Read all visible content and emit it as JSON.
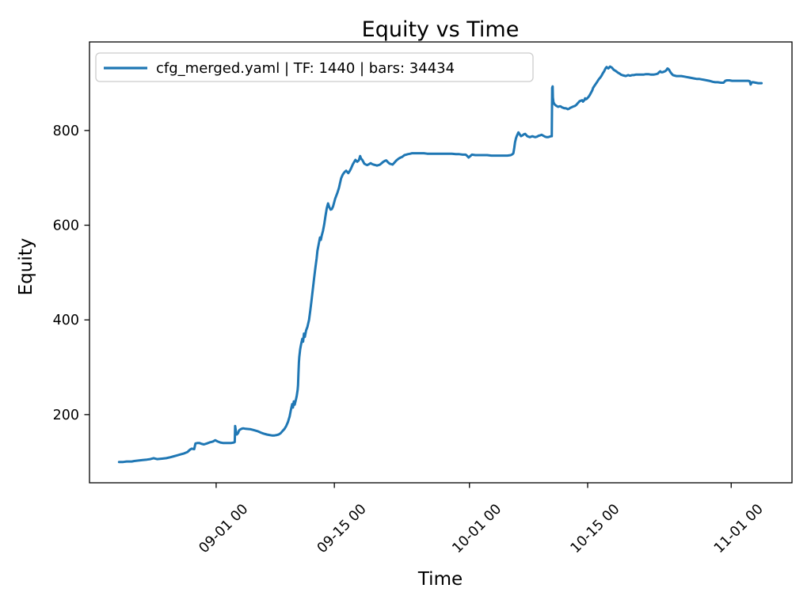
{
  "figure": {
    "title": "Equity vs Time",
    "xlabel": "Time",
    "ylabel": "Equity",
    "legend": {
      "label": "cfg_merged.yaml | TF: 1440 | bars: 34434",
      "line_color": "#1f77b4"
    },
    "colors": {
      "background": "#ffffff",
      "spine": "#000000",
      "legend_border": "#cccccc",
      "series": "#1f77b4"
    }
  },
  "chart_data": {
    "type": "line",
    "title": "Equity vs Time",
    "xlabel": "Time",
    "ylabel": "Equity",
    "legend": [
      "cfg_merged.yaml | TF: 1440 | bars: 34434"
    ],
    "legend_position": "upper left",
    "grid": false,
    "line_color": "#1f77b4",
    "x_unit": "days relative to 09-01 00:00",
    "xlim": [
      -15.0,
      68.2
    ],
    "ylim": [
      56,
      987
    ],
    "x_ticks": [
      {
        "pos": 0,
        "label": "09-01 00"
      },
      {
        "pos": 14,
        "label": "09-15 00"
      },
      {
        "pos": 30,
        "label": "10-01 00"
      },
      {
        "pos": 44,
        "label": "10-15 00"
      },
      {
        "pos": 61,
        "label": "11-01 00"
      }
    ],
    "y_ticks": [
      200,
      400,
      600,
      800
    ],
    "points": [
      [
        -11.5,
        100
      ],
      [
        -11.0,
        100
      ],
      [
        -10.6,
        101
      ],
      [
        -10.0,
        101
      ],
      [
        -9.7,
        102
      ],
      [
        -9.2,
        103
      ],
      [
        -8.7,
        104
      ],
      [
        -8.2,
        105
      ],
      [
        -7.8,
        106
      ],
      [
        -7.4,
        108
      ],
      [
        -7.0,
        106
      ],
      [
        -6.4,
        107
      ],
      [
        -5.9,
        108
      ],
      [
        -5.4,
        110
      ],
      [
        -5.0,
        112
      ],
      [
        -4.6,
        114
      ],
      [
        -4.2,
        116
      ],
      [
        -3.8,
        118
      ],
      [
        -3.4,
        121
      ],
      [
        -3.1,
        126
      ],
      [
        -2.9,
        128
      ],
      [
        -2.6,
        127
      ],
      [
        -2.45,
        139
      ],
      [
        -2.2,
        140
      ],
      [
        -2.0,
        140
      ],
      [
        -1.7,
        138
      ],
      [
        -1.45,
        137
      ],
      [
        -1.1,
        139
      ],
      [
        -0.8,
        141
      ],
      [
        -0.4,
        143
      ],
      [
        -0.1,
        146
      ],
      [
        0.2,
        143
      ],
      [
        0.5,
        141
      ],
      [
        0.8,
        140
      ],
      [
        1.1,
        140
      ],
      [
        1.5,
        140
      ],
      [
        1.8,
        140
      ],
      [
        2.1,
        141
      ],
      [
        2.2,
        142
      ],
      [
        2.25,
        176
      ],
      [
        2.35,
        163
      ],
      [
        2.45,
        158
      ],
      [
        2.6,
        161
      ],
      [
        2.7,
        166
      ],
      [
        2.8,
        168
      ],
      [
        3.0,
        170
      ],
      [
        3.2,
        171
      ],
      [
        3.5,
        170
      ],
      [
        4.1,
        169
      ],
      [
        4.5,
        167
      ],
      [
        4.9,
        165
      ],
      [
        5.3,
        162
      ],
      [
        5.6,
        160
      ],
      [
        6.0,
        158
      ],
      [
        6.3,
        157
      ],
      [
        6.6,
        156
      ],
      [
        6.9,
        156
      ],
      [
        7.2,
        157
      ],
      [
        7.4,
        158
      ],
      [
        7.65,
        161
      ],
      [
        7.9,
        166
      ],
      [
        8.1,
        170
      ],
      [
        8.3,
        176
      ],
      [
        8.5,
        184
      ],
      [
        8.7,
        196
      ],
      [
        8.85,
        210
      ],
      [
        9.0,
        222
      ],
      [
        9.1,
        215
      ],
      [
        9.2,
        228
      ],
      [
        9.3,
        221
      ],
      [
        9.45,
        232
      ],
      [
        9.55,
        240
      ],
      [
        9.65,
        252
      ],
      [
        9.7,
        262
      ],
      [
        9.75,
        290
      ],
      [
        9.8,
        310
      ],
      [
        9.85,
        322
      ],
      [
        9.95,
        338
      ],
      [
        10.05,
        348
      ],
      [
        10.2,
        360
      ],
      [
        10.3,
        354
      ],
      [
        10.4,
        371
      ],
      [
        10.5,
        364
      ],
      [
        10.65,
        378
      ],
      [
        10.8,
        385
      ],
      [
        11.0,
        400
      ],
      [
        11.15,
        420
      ],
      [
        11.3,
        442
      ],
      [
        11.45,
        465
      ],
      [
        11.6,
        488
      ],
      [
        11.75,
        510
      ],
      [
        11.9,
        530
      ],
      [
        12.0,
        546
      ],
      [
        12.15,
        560
      ],
      [
        12.3,
        574
      ],
      [
        12.4,
        569
      ],
      [
        12.5,
        578
      ],
      [
        12.65,
        588
      ],
      [
        12.8,
        602
      ],
      [
        12.95,
        620
      ],
      [
        13.1,
        636
      ],
      [
        13.25,
        646
      ],
      [
        13.4,
        638
      ],
      [
        13.55,
        633
      ],
      [
        13.7,
        634
      ],
      [
        13.85,
        640
      ],
      [
        14.1,
        656
      ],
      [
        14.35,
        668
      ],
      [
        14.55,
        679
      ],
      [
        14.8,
        699
      ],
      [
        15.0,
        707
      ],
      [
        15.2,
        712
      ],
      [
        15.4,
        715
      ],
      [
        15.65,
        710
      ],
      [
        15.8,
        714
      ],
      [
        15.95,
        719
      ],
      [
        16.2,
        729
      ],
      [
        16.5,
        738
      ],
      [
        16.7,
        734
      ],
      [
        16.9,
        737
      ],
      [
        17.05,
        746
      ],
      [
        17.15,
        741
      ],
      [
        17.3,
        738
      ],
      [
        17.55,
        730
      ],
      [
        17.75,
        728
      ],
      [
        17.9,
        727
      ],
      [
        18.1,
        729
      ],
      [
        18.3,
        731
      ],
      [
        18.5,
        729
      ],
      [
        18.65,
        728
      ],
      [
        18.85,
        727
      ],
      [
        19.05,
        726
      ],
      [
        19.25,
        727
      ],
      [
        19.4,
        728
      ],
      [
        19.6,
        731
      ],
      [
        19.8,
        734
      ],
      [
        20.0,
        736
      ],
      [
        20.15,
        737
      ],
      [
        20.35,
        733
      ],
      [
        20.55,
        730
      ],
      [
        20.75,
        729
      ],
      [
        20.9,
        728
      ],
      [
        21.1,
        732
      ],
      [
        21.3,
        736
      ],
      [
        21.5,
        739
      ],
      [
        21.65,
        741
      ],
      [
        21.85,
        743
      ],
      [
        22.0,
        744
      ],
      [
        22.15,
        746
      ],
      [
        22.3,
        748
      ],
      [
        22.5,
        749
      ],
      [
        22.7,
        750
      ],
      [
        23.0,
        751
      ],
      [
        23.2,
        752
      ],
      [
        23.6,
        752
      ],
      [
        24.1,
        752
      ],
      [
        24.6,
        752
      ],
      [
        25.0,
        751
      ],
      [
        25.5,
        751
      ],
      [
        26.0,
        751
      ],
      [
        26.5,
        751
      ],
      [
        27.0,
        751
      ],
      [
        27.5,
        751
      ],
      [
        27.9,
        751
      ],
      [
        28.4,
        750
      ],
      [
        28.8,
        750
      ],
      [
        29.2,
        749
      ],
      [
        29.55,
        749
      ],
      [
        29.75,
        746
      ],
      [
        29.9,
        743
      ],
      [
        30.1,
        746
      ],
      [
        30.3,
        749
      ],
      [
        30.7,
        748
      ],
      [
        31.1,
        748
      ],
      [
        31.6,
        748
      ],
      [
        32.1,
        748
      ],
      [
        32.6,
        747
      ],
      [
        33.0,
        747
      ],
      [
        33.5,
        747
      ],
      [
        34.0,
        747
      ],
      [
        34.5,
        747
      ],
      [
        34.9,
        748
      ],
      [
        35.1,
        750
      ],
      [
        35.2,
        752
      ],
      [
        35.3,
        763
      ],
      [
        35.4,
        775
      ],
      [
        35.5,
        783
      ],
      [
        35.6,
        788
      ],
      [
        35.8,
        796
      ],
      [
        35.95,
        792
      ],
      [
        36.1,
        788
      ],
      [
        36.3,
        790
      ],
      [
        36.45,
        792
      ],
      [
        36.6,
        793
      ],
      [
        36.75,
        790
      ],
      [
        36.85,
        788
      ],
      [
        37.0,
        787
      ],
      [
        37.15,
        786
      ],
      [
        37.3,
        787
      ],
      [
        37.45,
        788
      ],
      [
        37.6,
        787
      ],
      [
        37.8,
        786
      ],
      [
        38.0,
        787
      ],
      [
        38.2,
        789
      ],
      [
        38.4,
        790
      ],
      [
        38.55,
        791
      ],
      [
        38.75,
        789
      ],
      [
        38.95,
        787
      ],
      [
        39.15,
        786
      ],
      [
        39.3,
        786
      ],
      [
        39.5,
        787
      ],
      [
        39.65,
        788
      ],
      [
        39.75,
        788
      ],
      [
        39.8,
        890
      ],
      [
        39.85,
        893
      ],
      [
        39.88,
        870
      ],
      [
        39.95,
        860
      ],
      [
        40.05,
        856
      ],
      [
        40.15,
        854
      ],
      [
        40.3,
        852
      ],
      [
        40.5,
        850
      ],
      [
        40.65,
        851
      ],
      [
        40.8,
        851
      ],
      [
        40.95,
        849
      ],
      [
        41.1,
        848
      ],
      [
        41.25,
        847
      ],
      [
        41.4,
        847
      ],
      [
        41.55,
        846
      ],
      [
        41.65,
        845
      ],
      [
        41.8,
        846
      ],
      [
        41.95,
        848
      ],
      [
        42.1,
        849
      ],
      [
        42.2,
        850
      ],
      [
        42.35,
        851
      ],
      [
        42.5,
        852
      ],
      [
        42.65,
        854
      ],
      [
        42.8,
        857
      ],
      [
        42.95,
        860
      ],
      [
        43.05,
        862
      ],
      [
        43.2,
        863
      ],
      [
        43.35,
        864
      ],
      [
        43.45,
        861
      ],
      [
        43.6,
        864
      ],
      [
        43.7,
        868
      ],
      [
        43.8,
        866
      ],
      [
        43.9,
        867
      ],
      [
        44.0,
        869
      ],
      [
        44.1,
        871
      ],
      [
        44.25,
        875
      ],
      [
        44.4,
        880
      ],
      [
        44.55,
        885
      ],
      [
        44.65,
        890
      ],
      [
        44.8,
        894
      ],
      [
        44.95,
        898
      ],
      [
        45.1,
        902
      ],
      [
        45.2,
        905
      ],
      [
        45.35,
        909
      ],
      [
        45.5,
        912
      ],
      [
        45.65,
        916
      ],
      [
        45.8,
        921
      ],
      [
        45.95,
        925
      ],
      [
        46.05,
        929
      ],
      [
        46.15,
        932
      ],
      [
        46.25,
        934
      ],
      [
        46.35,
        932
      ],
      [
        46.45,
        931
      ],
      [
        46.55,
        933
      ],
      [
        46.65,
        935
      ],
      [
        46.75,
        934
      ],
      [
        46.85,
        933
      ],
      [
        47.0,
        930
      ],
      [
        47.1,
        928
      ],
      [
        47.2,
        927
      ],
      [
        47.3,
        926
      ],
      [
        47.45,
        924
      ],
      [
        47.6,
        922
      ],
      [
        47.8,
        920
      ],
      [
        47.95,
        918
      ],
      [
        48.1,
        917
      ],
      [
        48.3,
        916
      ],
      [
        48.5,
        915
      ],
      [
        48.65,
        916
      ],
      [
        48.8,
        917
      ],
      [
        48.95,
        916
      ],
      [
        49.1,
        916
      ],
      [
        49.25,
        917
      ],
      [
        49.45,
        917
      ],
      [
        49.7,
        918
      ],
      [
        50.0,
        918
      ],
      [
        50.3,
        918
      ],
      [
        50.6,
        918
      ],
      [
        50.9,
        919
      ],
      [
        51.2,
        919
      ],
      [
        51.5,
        918
      ],
      [
        51.8,
        918
      ],
      [
        52.1,
        919
      ],
      [
        52.3,
        920
      ],
      [
        52.45,
        923
      ],
      [
        52.6,
        925
      ],
      [
        52.7,
        923
      ],
      [
        52.85,
        923
      ],
      [
        53.0,
        924
      ],
      [
        53.15,
        925
      ],
      [
        53.3,
        927
      ],
      [
        53.45,
        931
      ],
      [
        53.55,
        930
      ],
      [
        53.65,
        928
      ],
      [
        53.75,
        925
      ],
      [
        53.85,
        922
      ],
      [
        54.0,
        919
      ],
      [
        54.1,
        917
      ],
      [
        54.3,
        916
      ],
      [
        54.5,
        915
      ],
      [
        54.8,
        915
      ],
      [
        55.1,
        915
      ],
      [
        55.4,
        914
      ],
      [
        55.7,
        913
      ],
      [
        56.0,
        912
      ],
      [
        56.3,
        911
      ],
      [
        56.6,
        910
      ],
      [
        56.9,
        909
      ],
      [
        57.2,
        909
      ],
      [
        57.5,
        908
      ],
      [
        57.8,
        907
      ],
      [
        58.1,
        906
      ],
      [
        58.4,
        905
      ],
      [
        58.8,
        903
      ],
      [
        59.1,
        902
      ],
      [
        59.4,
        902
      ],
      [
        59.8,
        901
      ],
      [
        60.1,
        901
      ],
      [
        60.3,
        905
      ],
      [
        60.5,
        906
      ],
      [
        60.8,
        906
      ],
      [
        61.1,
        905
      ],
      [
        61.4,
        905
      ],
      [
        61.8,
        905
      ],
      [
        62.2,
        905
      ],
      [
        62.6,
        905
      ],
      [
        63.0,
        905
      ],
      [
        63.2,
        904
      ],
      [
        63.3,
        897
      ],
      [
        63.45,
        902
      ],
      [
        63.6,
        902
      ],
      [
        63.9,
        901
      ],
      [
        64.2,
        900
      ],
      [
        64.6,
        900
      ]
    ]
  }
}
